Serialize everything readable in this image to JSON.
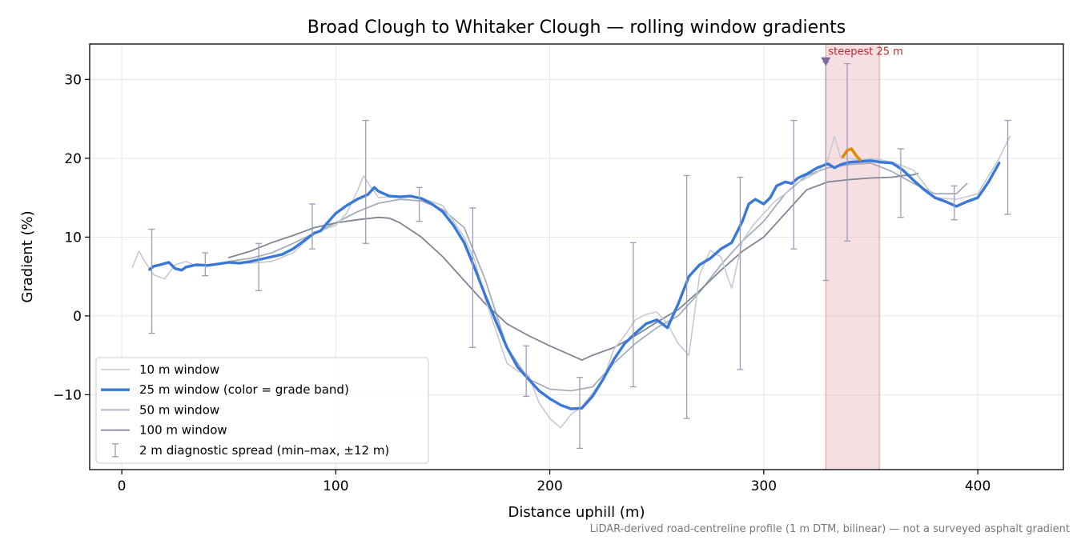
{
  "chart_data": {
    "type": "line",
    "title": "Broad Clough to Whitaker Clough — rolling window gradients",
    "xlabel": "Distance uphill (m)",
    "ylabel": "Gradient (%)",
    "xlim": [
      -15,
      440
    ],
    "ylim": [
      -19.5,
      34.5
    ],
    "x_ticks": [
      0,
      100,
      200,
      300,
      400
    ],
    "y_ticks": [
      -10,
      0,
      10,
      20,
      30
    ],
    "x_tick_labels": [
      "0",
      "100",
      "200",
      "300",
      "400"
    ],
    "y_tick_labels": [
      "−10",
      "0",
      "10",
      "20",
      "30"
    ],
    "grid": true,
    "legend_position": "lower-left",
    "footnote": "LiDAR-derived road-centreline profile (1 m DTM, bilinear) — not a surveyed asphalt gradient",
    "steepest_region": {
      "x_start": 329,
      "x_end": 354,
      "label": "steepest 25 m",
      "marker_x": 329,
      "marker_y": 32.3,
      "highlight_x": [
        337,
        339,
        341,
        343,
        345
      ],
      "highlight_y": [
        20.2,
        21.0,
        21.2,
        20.4,
        19.8
      ],
      "highlight_color": "#e08a00"
    },
    "series": [
      {
        "name": "10 m window",
        "color": "#c5c9d1",
        "width": 1.6,
        "x": [
          5,
          8,
          11,
          15,
          20,
          25,
          30,
          35,
          40,
          50,
          60,
          70,
          80,
          90,
          100,
          105,
          110,
          113,
          116,
          120,
          130,
          140,
          150,
          160,
          165,
          170,
          175,
          180,
          185,
          190,
          195,
          200,
          205,
          210,
          215,
          220,
          225,
          230,
          235,
          240,
          245,
          250,
          255,
          260,
          265,
          270,
          275,
          280,
          283,
          285,
          290,
          295,
          300,
          305,
          310,
          315,
          320,
          325,
          330,
          333,
          336,
          340,
          345,
          350,
          355,
          360,
          370,
          380,
          390,
          400,
          410,
          415
        ],
        "y": [
          6.2,
          8.2,
          6.8,
          5.2,
          4.7,
          6.5,
          6.9,
          6.3,
          6.4,
          6.8,
          6.7,
          6.9,
          8.0,
          10.5,
          11.5,
          13.0,
          15.8,
          17.8,
          16.5,
          15.0,
          15.2,
          15.0,
          14.0,
          10.0,
          7.0,
          2.0,
          -2.0,
          -6.0,
          -7.0,
          -7.5,
          -11.0,
          -13.0,
          -14.2,
          -12.5,
          -11.5,
          -9.8,
          -8.0,
          -4.2,
          -2.5,
          -0.5,
          0.2,
          0.5,
          -1.0,
          -3.5,
          -5.0,
          5.2,
          8.3,
          7.5,
          5.0,
          3.5,
          9.5,
          11.5,
          13.0,
          14.5,
          15.5,
          16.8,
          17.5,
          18.2,
          19.8,
          22.8,
          20.0,
          20.0,
          19.8,
          20.0,
          19.8,
          19.5,
          18.5,
          15.0,
          14.8,
          15.5,
          20.0,
          22.8
        ]
      },
      {
        "name": "25 m window (color = grade band)",
        "color": "#3a78d8",
        "width": 3.4,
        "x": [
          13,
          15,
          18,
          22,
          25,
          28,
          30,
          35,
          40,
          45,
          50,
          55,
          60,
          65,
          70,
          75,
          80,
          85,
          90,
          93,
          95,
          100,
          105,
          110,
          115,
          118,
          120,
          125,
          130,
          135,
          140,
          145,
          150,
          155,
          160,
          165,
          170,
          175,
          180,
          185,
          190,
          195,
          200,
          205,
          210,
          215,
          220,
          225,
          230,
          235,
          240,
          245,
          250,
          255,
          260,
          265,
          270,
          275,
          280,
          285,
          290,
          293,
          296,
          300,
          303,
          306,
          310,
          313,
          316,
          320,
          325,
          330,
          333,
          336,
          340,
          345,
          350,
          355,
          360,
          365,
          370,
          375,
          380,
          385,
          390,
          395,
          400,
          405,
          410
        ],
        "y": [
          5.9,
          6.3,
          6.5,
          6.8,
          6.0,
          5.8,
          6.2,
          6.5,
          6.4,
          6.6,
          6.8,
          6.7,
          6.9,
          7.2,
          7.5,
          7.8,
          8.5,
          9.5,
          10.5,
          10.8,
          11.5,
          13.0,
          14.0,
          14.8,
          15.4,
          16.3,
          15.8,
          15.2,
          15.1,
          15.2,
          14.9,
          14.2,
          13.2,
          11.5,
          9.3,
          6.0,
          2.5,
          -0.8,
          -4.0,
          -6.5,
          -8.0,
          -9.5,
          -10.5,
          -11.3,
          -11.8,
          -11.7,
          -10.2,
          -8.0,
          -5.5,
          -3.5,
          -2.2,
          -1.0,
          -0.5,
          -1.5,
          1.5,
          5.0,
          6.5,
          7.3,
          8.5,
          9.3,
          12.0,
          14.2,
          14.8,
          14.2,
          15.0,
          16.5,
          17.0,
          16.8,
          17.5,
          18.0,
          18.8,
          19.3,
          18.8,
          19.2,
          19.5,
          19.6,
          19.7,
          19.5,
          19.4,
          18.5,
          17.2,
          16.0,
          15.0,
          14.5,
          13.9,
          14.5,
          15.0,
          17.0,
          19.4
        ]
      },
      {
        "name": "50 m window",
        "color": "#a4adba",
        "width": 1.8,
        "x": [
          50,
          60,
          70,
          80,
          90,
          100,
          110,
          120,
          130,
          140,
          150,
          160,
          170,
          180,
          190,
          200,
          210,
          220,
          230,
          240,
          250,
          260,
          270,
          280,
          290,
          300,
          310,
          320,
          330,
          340,
          350,
          360,
          370,
          380,
          390,
          395
        ],
        "y": [
          6.9,
          7.3,
          8.0,
          9.2,
          10.5,
          11.8,
          13.2,
          14.3,
          14.8,
          14.6,
          13.5,
          11.2,
          4.5,
          -4.0,
          -8.0,
          -9.3,
          -9.5,
          -9.0,
          -6.0,
          -3.5,
          -1.5,
          0.0,
          3.0,
          6.5,
          9.5,
          12.0,
          15.5,
          17.8,
          18.8,
          19.2,
          19.4,
          18.3,
          16.8,
          15.5,
          15.5,
          16.8
        ]
      },
      {
        "name": "100 m window",
        "color": "#7e8593",
        "width": 1.8,
        "x": [
          50,
          60,
          70,
          80,
          90,
          100,
          110,
          120,
          125,
          130,
          140,
          150,
          160,
          170,
          180,
          190,
          200,
          210,
          215,
          220,
          230,
          240,
          250,
          260,
          270,
          280,
          290,
          300,
          310,
          320,
          330,
          340,
          350,
          360,
          365,
          370,
          372
        ],
        "y": [
          7.4,
          8.2,
          9.3,
          10.2,
          11.2,
          11.8,
          12.2,
          12.5,
          12.4,
          11.8,
          10.0,
          7.5,
          4.5,
          1.5,
          -1.0,
          -2.5,
          -3.8,
          -5.0,
          -5.6,
          -5.0,
          -4.0,
          -2.5,
          -0.8,
          0.8,
          3.2,
          5.8,
          8.2,
          10.0,
          13.0,
          16.0,
          17.0,
          17.3,
          17.5,
          17.6,
          17.8,
          17.9,
          18.1
        ]
      },
      {
        "name": "2 m diagnostic spread (min–max, ±12 m)",
        "color": "#9e9ab8",
        "type": "errorbar",
        "x": [
          14,
          39,
          64,
          89,
          114,
          139,
          164,
          189,
          214,
          239,
          264,
          289,
          314,
          329,
          339,
          364,
          389,
          414
        ],
        "y_min": [
          -2.2,
          5.1,
          3.2,
          8.5,
          9.2,
          12.0,
          -4.0,
          -10.2,
          -16.8,
          -9.0,
          -13.0,
          -6.8,
          8.5,
          4.5,
          9.5,
          12.5,
          12.2,
          12.9
        ],
        "y_max": [
          11.0,
          8.0,
          9.2,
          14.2,
          24.8,
          16.3,
          13.7,
          -3.8,
          -7.8,
          9.3,
          17.8,
          17.6,
          24.8,
          32.2,
          32.0,
          21.2,
          16.5,
          24.8
        ]
      }
    ]
  }
}
